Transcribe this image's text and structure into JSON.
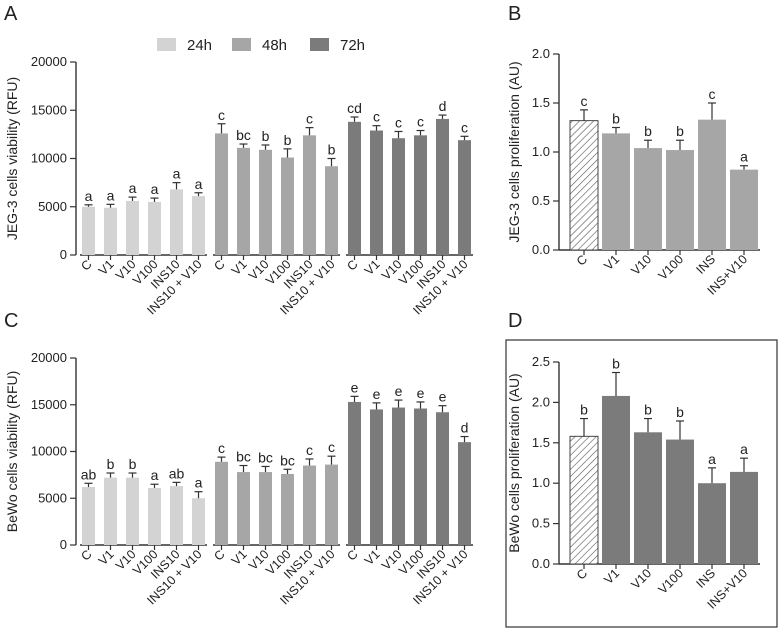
{
  "legend": {
    "entries": [
      {
        "label": "24h",
        "color": "#d3d3d3"
      },
      {
        "label": "48h",
        "color": "#a6a6a6"
      },
      {
        "label": "72h",
        "color": "#7b7b7b"
      }
    ]
  },
  "chart_data": [
    {
      "panel": "A",
      "type": "bar",
      "ylabel": "JEG-3 cells viability (RFU)",
      "ylim": [
        0,
        20000
      ],
      "yticks": [
        "0",
        "5000",
        "10000",
        "15000",
        "20000"
      ],
      "categories": [
        "C",
        "V1",
        "V10",
        "V100",
        "INS10",
        "INS10 + V10"
      ],
      "series": [
        {
          "name": "24h",
          "color": "#d3d3d3",
          "values": [
            5000,
            4900,
            5600,
            5500,
            6800,
            6100
          ],
          "errors": [
            200,
            350,
            400,
            400,
            700,
            350
          ],
          "labels": [
            "a",
            "a",
            "a",
            "a",
            "a",
            "a"
          ]
        },
        {
          "name": "48h",
          "color": "#a6a6a6",
          "values": [
            12600,
            11100,
            10900,
            10100,
            12400,
            9200
          ],
          "errors": [
            1000,
            400,
            500,
            900,
            800,
            800
          ],
          "labels": [
            "c",
            "bc",
            "b",
            "b",
            "c",
            "b"
          ]
        },
        {
          "name": "72h",
          "color": "#7b7b7b",
          "values": [
            13800,
            12900,
            12100,
            12400,
            14100,
            11900
          ],
          "errors": [
            500,
            500,
            700,
            500,
            400,
            400
          ],
          "labels": [
            "cd",
            "c",
            "c",
            "c",
            "d",
            "c"
          ]
        }
      ]
    },
    {
      "panel": "B",
      "type": "bar",
      "ylabel": "JEG-3 cells proliferation (AU)",
      "ylim": [
        0,
        2.0
      ],
      "yticks": [
        "0.0",
        "0.5",
        "1.0",
        "1.5",
        "2.0"
      ],
      "categories": [
        "C",
        "V1",
        "V10",
        "V100",
        "INS",
        "INS+V10"
      ],
      "values": [
        1.32,
        1.19,
        1.04,
        1.02,
        1.33,
        0.82
      ],
      "errors": [
        0.11,
        0.06,
        0.08,
        0.1,
        0.17,
        0.04
      ],
      "labels": [
        "c",
        "b",
        "b",
        "b",
        "c",
        "a"
      ],
      "color": "#a6a6a6",
      "first_bar_style": "hatched"
    },
    {
      "panel": "C",
      "type": "bar",
      "ylabel": "BeWo cells viability (RFU)",
      "ylim": [
        0,
        20000
      ],
      "yticks": [
        "0",
        "5000",
        "10000",
        "15000",
        "20000"
      ],
      "categories": [
        "C",
        "V1",
        "V10",
        "V100",
        "INS10",
        "INS10 + V10"
      ],
      "series": [
        {
          "name": "24h",
          "color": "#d3d3d3",
          "values": [
            6200,
            7200,
            7200,
            6100,
            6300,
            5000
          ],
          "errors": [
            400,
            500,
            500,
            400,
            400,
            700
          ],
          "labels": [
            "ab",
            "b",
            "b",
            "a",
            "ab",
            "a"
          ]
        },
        {
          "name": "48h",
          "color": "#a6a6a6",
          "values": [
            8900,
            7800,
            7800,
            7600,
            8500,
            8600
          ],
          "errors": [
            500,
            700,
            600,
            500,
            700,
            900
          ],
          "labels": [
            "c",
            "bc",
            "bc",
            "bc",
            "c",
            "c"
          ]
        },
        {
          "name": "72h",
          "color": "#7b7b7b",
          "values": [
            15300,
            14500,
            14700,
            14600,
            14200,
            11000
          ],
          "errors": [
            600,
            700,
            800,
            700,
            700,
            600
          ],
          "labels": [
            "e",
            "e",
            "e",
            "e",
            "e",
            "d"
          ]
        }
      ]
    },
    {
      "panel": "D",
      "type": "bar",
      "ylabel": "BeWo cells proliferation (AU)",
      "ylim": [
        0,
        2.5
      ],
      "yticks": [
        "0.0",
        "0.5",
        "1.0",
        "1.5",
        "2.0",
        "2.5"
      ],
      "categories": [
        "C",
        "V1",
        "V10",
        "V100",
        "INS",
        "INS+V10"
      ],
      "values": [
        1.58,
        2.08,
        1.63,
        1.54,
        1.0,
        1.14
      ],
      "errors": [
        0.22,
        0.29,
        0.17,
        0.23,
        0.19,
        0.17
      ],
      "labels": [
        "b",
        "b",
        "b",
        "b",
        "a",
        "a"
      ],
      "color": "#7b7b7b",
      "first_bar_style": "hatched"
    }
  ]
}
